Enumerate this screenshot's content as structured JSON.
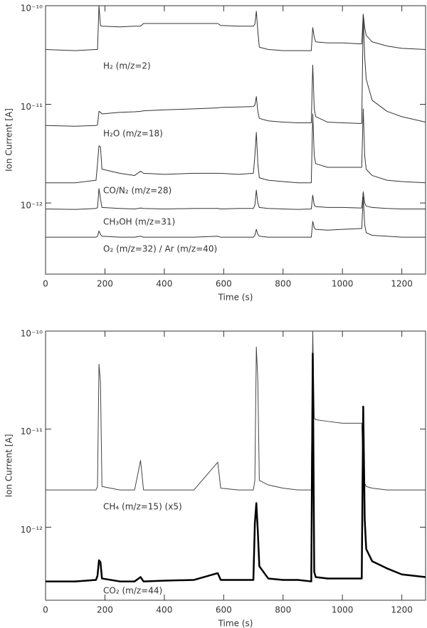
{
  "chart_data": [
    {
      "type": "line",
      "x_label": "Time (s)",
      "y_label": "Ion Current [A]",
      "log_y": true,
      "xlim": [
        0,
        1280
      ],
      "xticks": [
        0,
        200,
        400,
        600,
        800,
        1000,
        1200
      ],
      "ylim": [
        1.9e-13,
        1e-10
      ],
      "yticks": [
        {
          "value": 1e-10,
          "label": "10⁻¹⁰"
        },
        {
          "value": 1e-11,
          "label": "10⁻¹¹"
        },
        {
          "value": 1e-12,
          "label": "10⁻¹²"
        }
      ],
      "x": [
        0,
        100,
        170,
        175,
        180,
        185,
        190,
        250,
        300,
        320,
        330,
        400,
        500,
        580,
        590,
        650,
        700,
        705,
        710,
        715,
        720,
        750,
        800,
        850,
        895,
        900,
        905,
        910,
        950,
        1000,
        1060,
        1065,
        1070,
        1075,
        1080,
        1100,
        1150,
        1200,
        1280
      ],
      "series": [
        {
          "name": "H₂ (m/z=2)",
          "color": "#333333",
          "values": [
            3.6e-11,
            3.5e-11,
            3.6e-11,
            3.6e-11,
            1e-10,
            6.3e-11,
            6.2e-11,
            6.1e-11,
            6.2e-11,
            6.2e-11,
            6.6e-11,
            6.6e-11,
            6.6e-11,
            6.6e-11,
            6.3e-11,
            6.2e-11,
            6.2e-11,
            6.5e-11,
            8.8e-11,
            5.5e-11,
            3.8e-11,
            3.6e-11,
            3.5e-11,
            3.5e-11,
            3.5e-11,
            6e-11,
            4.8e-11,
            4.3e-11,
            4.2e-11,
            4.2e-11,
            4.1e-11,
            4.1e-11,
            8.2e-11,
            6e-11,
            5e-11,
            4.3e-11,
            3.9e-11,
            3.7e-11,
            3.6e-11
          ]
        },
        {
          "name": "H₂O (m/z=18)",
          "color": "#333333",
          "values": [
            6.1e-12,
            6e-12,
            6.1e-12,
            6.2e-12,
            8.5e-12,
            8.3e-12,
            8e-12,
            8.3e-12,
            8.4e-12,
            8.5e-12,
            8.6e-12,
            8.8e-12,
            9e-12,
            9.2e-12,
            9.3e-12,
            9.4e-12,
            9.5e-12,
            9.8e-12,
            1.2e-11,
            8.5e-12,
            7.2e-12,
            6.8e-12,
            6.6e-12,
            6.5e-12,
            6.5e-12,
            2.5e-11,
            9e-12,
            7.5e-12,
            6.6e-12,
            6.5e-12,
            6.4e-12,
            6.4e-12,
            8.2e-11,
            3e-11,
            1.8e-11,
            1.1e-11,
            8.5e-12,
            7.5e-12,
            6.6e-12
          ]
        },
        {
          "name": "CO/N₂ (m/z=28)",
          "color": "#333333",
          "values": [
            1.6e-12,
            1.6e-12,
            1.7e-12,
            2.5e-12,
            3.8e-12,
            3.7e-12,
            2.2e-12,
            2e-12,
            1.9e-12,
            2.1e-12,
            2e-12,
            1.95e-12,
            2e-12,
            2e-12,
            2e-12,
            1.95e-12,
            2e-12,
            3e-12,
            5.2e-12,
            2.5e-12,
            1.8e-12,
            1.7e-12,
            1.65e-12,
            1.6e-12,
            1.6e-12,
            8e-12,
            3e-12,
            2.5e-12,
            2.3e-12,
            2.3e-12,
            2.3e-12,
            2.3e-12,
            9e-12,
            3e-12,
            2.2e-12,
            1.9e-12,
            1.7e-12,
            1.65e-12,
            1.6e-12
          ]
        },
        {
          "name": "CH₃OH (m/z=31)",
          "color": "#333333",
          "values": [
            8.7e-13,
            8.6e-13,
            8.8e-13,
            9e-13,
            1.4e-12,
            1.1e-12,
            9e-13,
            8.8e-13,
            8.7e-13,
            8.9e-13,
            8.8e-13,
            8.7e-13,
            8.8e-13,
            8.8e-13,
            8.7e-13,
            8.8e-13,
            8.8e-13,
            9.5e-13,
            1.35e-12,
            1e-12,
            9e-13,
            8.8e-13,
            8.7e-13,
            8.6e-13,
            8.7e-13,
            1.2e-12,
            9.5e-13,
            9.2e-13,
            9e-13,
            9e-13,
            8.9e-13,
            8.9e-13,
            1.3e-12,
            1e-12,
            9.3e-13,
            9e-13,
            8.8e-13,
            8.7e-13,
            8.7e-13
          ]
        },
        {
          "name": "O₂ (m/z=32) / Ar (m/z=40)",
          "color": "#333333",
          "values": [
            4.5e-13,
            4.5e-13,
            4.5e-13,
            4.6e-13,
            5.2e-13,
            4.8e-13,
            4.6e-13,
            4.5e-13,
            4.5e-13,
            4.6e-13,
            4.5e-13,
            4.5e-13,
            4.5e-13,
            4.6e-13,
            4.5e-13,
            4.5e-13,
            4.5e-13,
            4.7e-13,
            5.4e-13,
            4.8e-13,
            4.6e-13,
            4.5e-13,
            4.5e-13,
            4.5e-13,
            4.5e-13,
            6.5e-13,
            5.6e-13,
            5.4e-13,
            5.3e-13,
            5.4e-13,
            5.5e-13,
            5.5e-13,
            1.15e-12,
            6e-13,
            5e-13,
            4.7e-13,
            4.6e-13,
            4.5e-13,
            4.5e-13
          ]
        }
      ]
    },
    {
      "type": "line",
      "x_label": "Time (s)",
      "y_label": "Ion Current [A]",
      "log_y": true,
      "xlim": [
        0,
        1280
      ],
      "xticks": [
        0,
        200,
        400,
        600,
        800,
        1000,
        1200
      ],
      "ylim": [
        1.8e-13,
        1e-10
      ],
      "yticks": [
        {
          "value": 1e-10,
          "label": "10⁻¹⁰"
        },
        {
          "value": 1e-11,
          "label": "10⁻¹¹"
        },
        {
          "value": 1e-12,
          "label": "10⁻¹²"
        }
      ],
      "x": [
        0,
        100,
        170,
        175,
        180,
        185,
        190,
        250,
        300,
        320,
        330,
        400,
        500,
        580,
        590,
        650,
        700,
        705,
        710,
        715,
        720,
        750,
        800,
        850,
        895,
        900,
        905,
        910,
        950,
        1000,
        1060,
        1065,
        1070,
        1075,
        1080,
        1100,
        1150,
        1200,
        1280
      ],
      "series": [
        {
          "name": "CH₄ (m/z=15) (x5)",
          "color": "#444444",
          "values": [
            2.4e-12,
            2.4e-12,
            2.4e-12,
            2.6e-12,
            4.6e-11,
            3e-11,
            2.6e-12,
            2.4e-12,
            2.4e-12,
            4.8e-12,
            2.4e-12,
            2.4e-12,
            2.4e-12,
            4.6e-12,
            2.5e-12,
            2.4e-12,
            2.4e-12,
            3e-12,
            6.9e-11,
            3.1e-11,
            3e-12,
            2.7e-12,
            2.5e-12,
            2.4e-12,
            2.4e-12,
            1e-10,
            1.3e-11,
            1.25e-11,
            1.2e-11,
            1.15e-11,
            1.15e-11,
            1.15e-11,
            3.4e-12,
            2.8e-12,
            2.6e-12,
            2.5e-12,
            2.4e-12,
            2.4e-12,
            2.4e-12
          ]
        },
        {
          "name": "CO₂ (m/z=44)",
          "color": "#000000",
          "values": [
            2.8e-13,
            2.8e-13,
            2.9e-13,
            3.2e-13,
            4.6e-13,
            4.4e-13,
            3e-13,
            2.8e-13,
            2.8e-13,
            3.1e-13,
            2.8e-13,
            2.85e-13,
            2.9e-13,
            3.4e-13,
            2.9e-13,
            2.9e-13,
            2.9e-13,
            1.1e-12,
            1.76e-12,
            9e-13,
            4e-13,
            3e-13,
            2.9e-13,
            2.9e-13,
            2.8e-13,
            5.9e-11,
            3.5e-13,
            3.1e-13,
            3e-13,
            3e-13,
            3e-13,
            3e-13,
            1.7e-11,
            1.2e-12,
            6e-13,
            4.5e-13,
            3.8e-13,
            3.3e-13,
            3.1e-13
          ]
        }
      ]
    }
  ]
}
